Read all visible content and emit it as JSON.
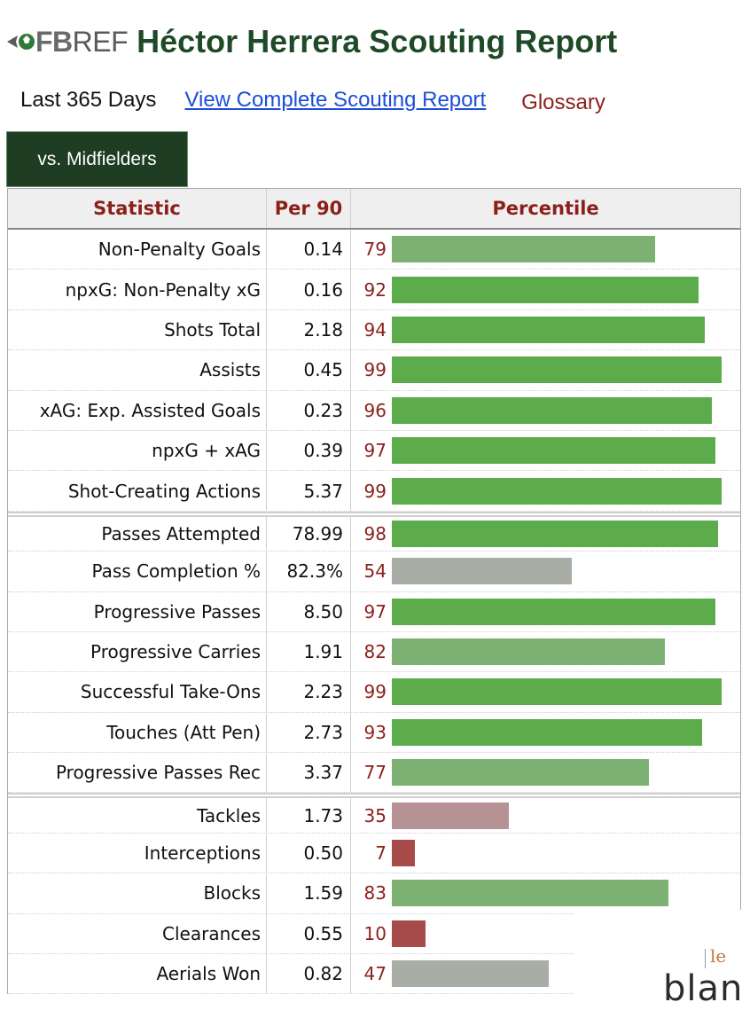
{
  "header": {
    "logo": {
      "bold": "FB",
      "thin": "REF"
    },
    "title": "Héctor Herrera Scouting Report"
  },
  "subnav": {
    "period": "Last 365 Days",
    "full_report_link": "View Complete Scouting Report",
    "glossary_link": "Glossary"
  },
  "tab": {
    "label": "vs. Midfielders"
  },
  "table": {
    "headers": {
      "statistic": "Statistic",
      "per90": "Per 90",
      "percentile": "Percentile"
    },
    "colors": {
      "high": "#5cac4c",
      "mid_high": "#7db173",
      "neutral": "#a8aea6",
      "low": "#b69294",
      "very_low": "#a64a4a"
    },
    "rows": [
      {
        "stat": "Non-Penalty Goals",
        "per90": "0.14",
        "pct": "79",
        "pct_value": 79,
        "tone": "mid_high",
        "sep": false
      },
      {
        "stat": "npxG: Non-Penalty xG",
        "per90": "0.16",
        "pct": "92",
        "pct_value": 92,
        "tone": "high",
        "sep": false
      },
      {
        "stat": "Shots Total",
        "per90": "2.18",
        "pct": "94",
        "pct_value": 94,
        "tone": "high",
        "sep": false
      },
      {
        "stat": "Assists",
        "per90": "0.45",
        "pct": "99",
        "pct_value": 99,
        "tone": "high",
        "sep": false
      },
      {
        "stat": "xAG: Exp. Assisted Goals",
        "per90": "0.23",
        "pct": "96",
        "pct_value": 96,
        "tone": "high",
        "sep": false
      },
      {
        "stat": "npxG + xAG",
        "per90": "0.39",
        "pct": "97",
        "pct_value": 97,
        "tone": "high",
        "sep": false
      },
      {
        "stat": "Shot-Creating Actions",
        "per90": "5.37",
        "pct": "99",
        "pct_value": 99,
        "tone": "high",
        "sep": false
      },
      {
        "stat": "Passes Attempted",
        "per90": "78.99",
        "pct": "98",
        "pct_value": 98,
        "tone": "high",
        "sep": true
      },
      {
        "stat": "Pass Completion %",
        "per90": "82.3%",
        "pct": "54",
        "pct_value": 54,
        "tone": "neutral",
        "sep": false
      },
      {
        "stat": "Progressive Passes",
        "per90": "8.50",
        "pct": "97",
        "pct_value": 97,
        "tone": "high",
        "sep": false
      },
      {
        "stat": "Progressive Carries",
        "per90": "1.91",
        "pct": "82",
        "pct_value": 82,
        "tone": "mid_high",
        "sep": false
      },
      {
        "stat": "Successful Take-Ons",
        "per90": "2.23",
        "pct": "99",
        "pct_value": 99,
        "tone": "high",
        "sep": false
      },
      {
        "stat": "Touches (Att Pen)",
        "per90": "2.73",
        "pct": "93",
        "pct_value": 93,
        "tone": "high",
        "sep": false
      },
      {
        "stat": "Progressive Passes Rec",
        "per90": "3.37",
        "pct": "77",
        "pct_value": 77,
        "tone": "mid_high",
        "sep": false
      },
      {
        "stat": "Tackles",
        "per90": "1.73",
        "pct": "35",
        "pct_value": 35,
        "tone": "low",
        "sep": true
      },
      {
        "stat": "Interceptions",
        "per90": "0.50",
        "pct": "7",
        "pct_value": 7,
        "tone": "very_low",
        "sep": false
      },
      {
        "stat": "Blocks",
        "per90": "1.59",
        "pct": "83",
        "pct_value": 83,
        "tone": "mid_high",
        "sep": false
      },
      {
        "stat": "Clearances",
        "per90": "0.55",
        "pct": "10",
        "pct_value": 10,
        "tone": "very_low",
        "sep": false
      },
      {
        "stat": "Aerials Won",
        "per90": "0.82",
        "pct": "47",
        "pct_value": 47,
        "tone": "neutral",
        "sep": false
      }
    ]
  },
  "ad": {
    "small": "le",
    "large": "blan"
  }
}
